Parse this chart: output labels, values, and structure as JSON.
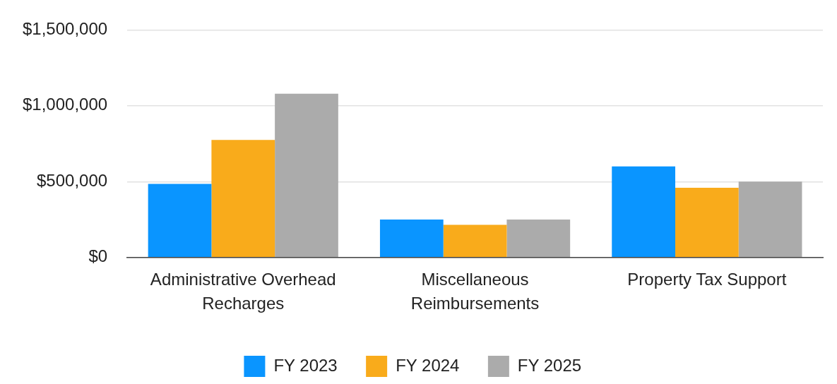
{
  "chart_data": {
    "type": "bar",
    "categories": [
      "Administrative Overhead Recharges",
      "Miscellaneous Reimbursements",
      "Property Tax Support"
    ],
    "series": [
      {
        "name": "FY 2023",
        "color": "#0a95ff",
        "values": [
          485000,
          250000,
          600000
        ]
      },
      {
        "name": "FY 2024",
        "color": "#f9ab1b",
        "values": [
          775000,
          215000,
          460000
        ]
      },
      {
        "name": "FY 2025",
        "color": "#ababab",
        "values": [
          1080000,
          250000,
          500000
        ]
      }
    ],
    "ylim": [
      0,
      1500000
    ],
    "yticks": [
      {
        "value": 0,
        "label": "$0"
      },
      {
        "value": 500000,
        "label": "$500,000"
      },
      {
        "value": 1000000,
        "label": "$1,000,000"
      },
      {
        "value": 1500000,
        "label": "$1,500,000"
      }
    ],
    "grid": "y",
    "legend": "bottom"
  }
}
